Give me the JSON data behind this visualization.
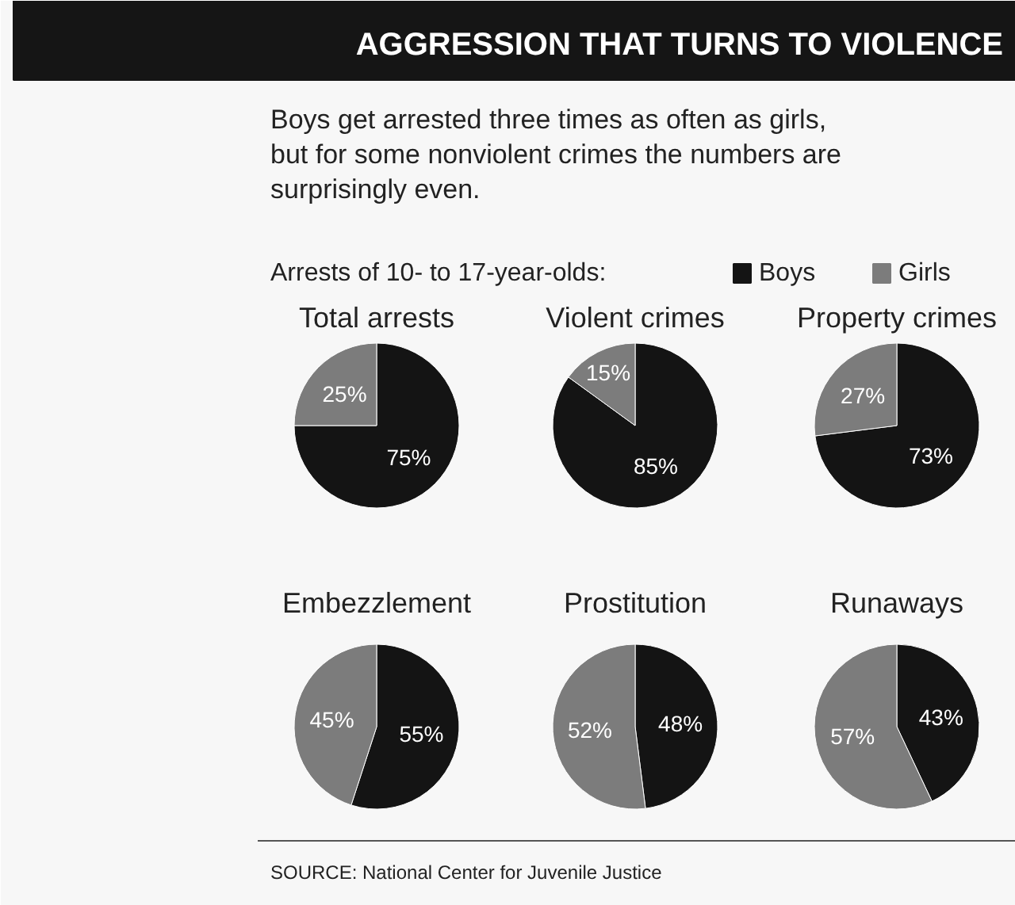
{
  "chart_data": [
    {
      "type": "other",
      "title": "AGGRESSION THAT TURNS TO VIOLENCE",
      "subtitle": "Boys get arrested three times as often as girls, but for some nonviolent crimes the numbers are surprisingly even.",
      "annotations": [
        "SOURCE: National Center for Juvenile Justice"
      ]
    },
    {
      "type": "pie",
      "title": "Total arrests",
      "categories": [
        "Boys",
        "Girls"
      ],
      "values": [
        75,
        25
      ],
      "value_labels": [
        "75%",
        "25%"
      ],
      "colors": [
        "#141414",
        "#7c7c7c"
      ],
      "legend": "top",
      "legend_title": "Arrests of 10- to 17-year-olds:"
    },
    {
      "type": "pie",
      "title": "Violent crimes",
      "categories": [
        null,
        null
      ],
      "values": [
        85,
        15
      ],
      "value_labels": [
        "85%",
        "15%"
      ],
      "colors": [
        "#141414",
        "#7c7c7c"
      ]
    },
    {
      "type": "pie",
      "title": "Property crimes",
      "categories": [
        null,
        null
      ],
      "values": [
        73,
        27
      ],
      "value_labels": [
        "73%",
        "27%"
      ],
      "colors": [
        "#141414",
        "#7c7c7c"
      ]
    },
    {
      "type": "pie",
      "title": "Embezzlement",
      "categories": [
        null,
        null
      ],
      "values": [
        55,
        45
      ],
      "value_labels": [
        "55%",
        "45%"
      ],
      "colors": [
        "#141414",
        "#7c7c7c"
      ]
    },
    {
      "type": "pie",
      "title": "Prostitution",
      "categories": [
        null,
        null
      ],
      "values": [
        48,
        52
      ],
      "value_labels": [
        "48%",
        "52%"
      ],
      "colors": [
        "#141414",
        "#7c7c7c"
      ]
    },
    {
      "type": "pie",
      "title": "Runaways",
      "categories": [
        null,
        null
      ],
      "values": [
        43,
        57
      ],
      "value_labels": [
        "43%",
        "57%"
      ],
      "colors": [
        "#141414",
        "#7c7c7c"
      ]
    }
  ]
}
